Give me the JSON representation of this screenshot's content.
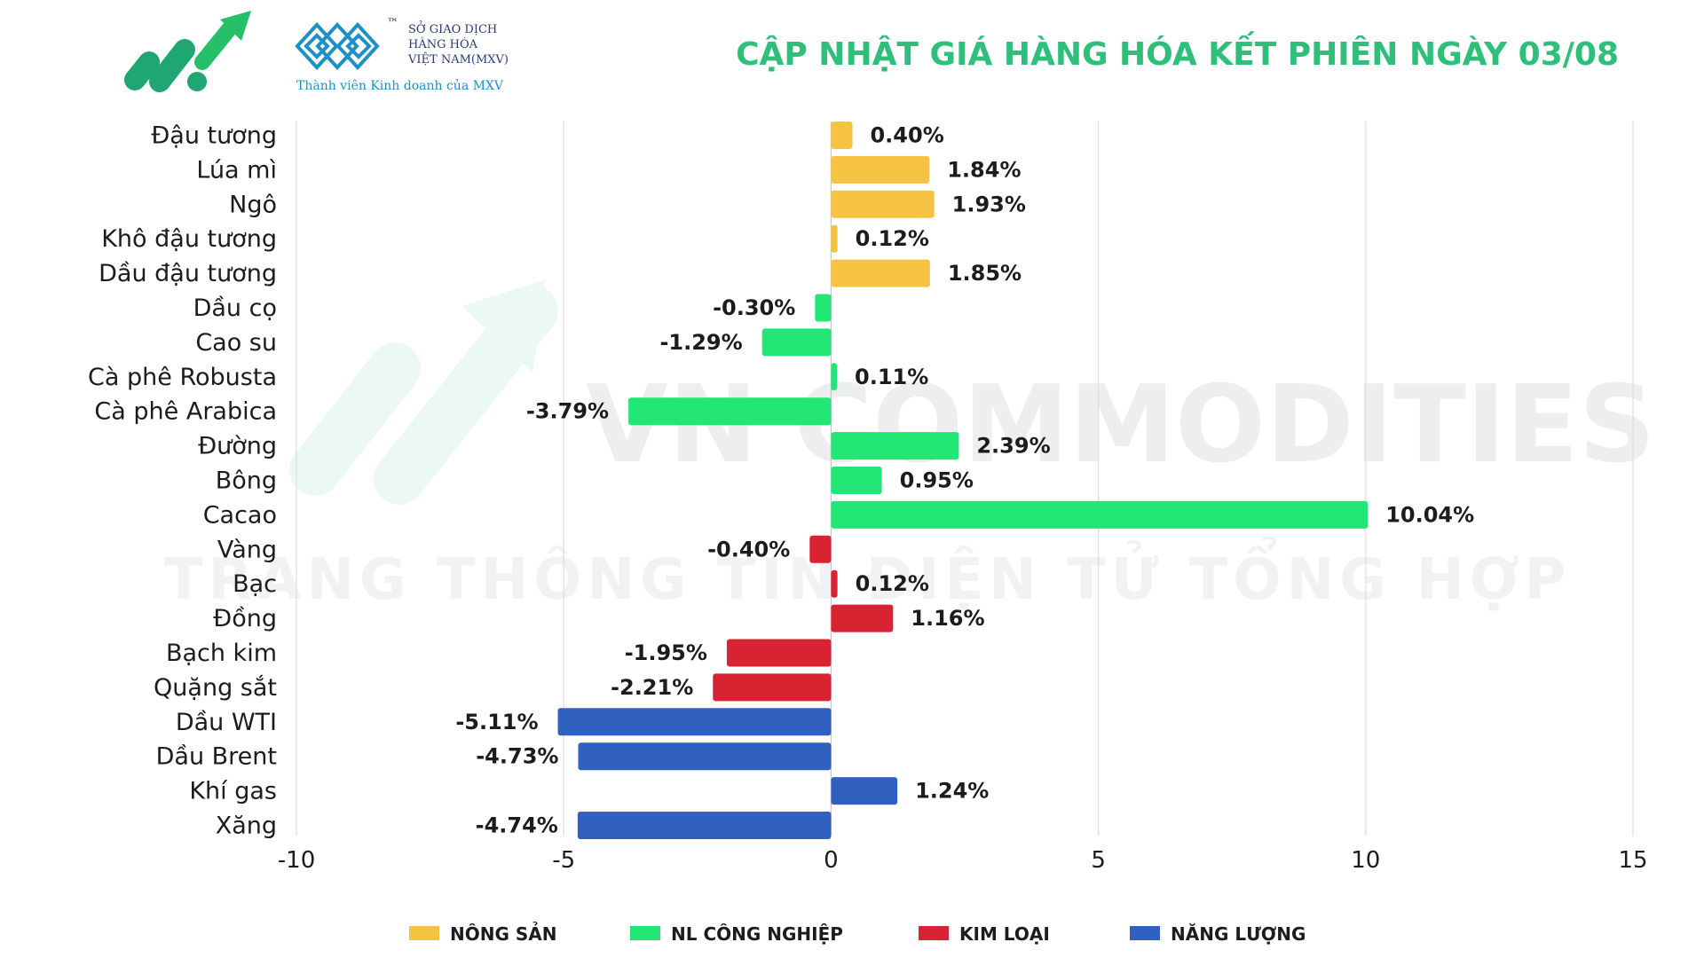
{
  "header": {
    "title": "CẬP NHẬT GIÁ HÀNG HÓA KẾT PHIÊN NGÀY 03/08",
    "mxv_lines": [
      "SỞ GIAO DỊCH",
      "HÀNG HÓA",
      "VIỆT NAM(MXV)"
    ],
    "mxv_tagline": "Thành viên Kinh doanh của MXV",
    "trademark": "™"
  },
  "watermark": {
    "line1": "VN COMMODITIES",
    "line2": "TRANG THÔNG TIN ĐIỆN TỬ TỔNG HỢP"
  },
  "colors": {
    "nong_san": "#f5c242",
    "nl_cong_nghiep": "#22e676",
    "kim_loai": "#d92232",
    "nang_luong": "#3060c0",
    "title": "#2ec07a",
    "grid": "#dddddd"
  },
  "chart_data": {
    "type": "bar",
    "orientation": "horizontal",
    "title": "CẬP NHẬT GIÁ HÀNG HÓA KẾT PHIÊN NGÀY 03/08",
    "xlim": [
      -10,
      15
    ],
    "xticks": [
      -10,
      -5,
      0,
      5,
      10,
      15
    ],
    "grid": "vertical",
    "legend_position": "bottom",
    "categories": [
      "Đậu tương",
      "Lúa mì",
      "Ngô",
      "Khô đậu tương",
      "Dầu đậu tương",
      "Dầu cọ",
      "Cao su",
      "Cà phê Robusta",
      "Cà phê Arabica",
      "Đường",
      "Bông",
      "Cacao",
      "Vàng",
      "Bạc",
      "Đồng",
      "Bạch kim",
      "Quặng sắt",
      "Dầu WTI",
      "Dầu Brent",
      "Khí gas",
      "Xăng"
    ],
    "values": [
      0.4,
      1.84,
      1.93,
      0.12,
      1.85,
      -0.3,
      -1.29,
      0.11,
      -3.79,
      2.39,
      0.95,
      10.04,
      -0.4,
      0.12,
      1.16,
      -1.95,
      -2.21,
      -5.11,
      -4.73,
      1.24,
      -4.74
    ],
    "value_labels": [
      "0.40%",
      "1.84%",
      "1.93%",
      "0.12%",
      "1.85%",
      "-0.30%",
      "-1.29%",
      "0.11%",
      "-3.79%",
      "2.39%",
      "0.95%",
      "10.04%",
      "-0.40%",
      "0.12%",
      "1.16%",
      "-1.95%",
      "-2.21%",
      "-5.11%",
      "-4.73%",
      "1.24%",
      "-4.74%"
    ],
    "groups": [
      "nong_san",
      "nong_san",
      "nong_san",
      "nong_san",
      "nong_san",
      "nl_cong_nghiep",
      "nl_cong_nghiep",
      "nl_cong_nghiep",
      "nl_cong_nghiep",
      "nl_cong_nghiep",
      "nl_cong_nghiep",
      "nl_cong_nghiep",
      "kim_loai",
      "kim_loai",
      "kim_loai",
      "kim_loai",
      "kim_loai",
      "nang_luong",
      "nang_luong",
      "nang_luong",
      "nang_luong"
    ],
    "legend": [
      {
        "key": "nong_san",
        "label": "NÔNG SẢN"
      },
      {
        "key": "nl_cong_nghiep",
        "label": "NL CÔNG NGHIỆP"
      },
      {
        "key": "kim_loai",
        "label": "KIM LOẠI"
      },
      {
        "key": "nang_luong",
        "label": "NĂNG LƯỢNG"
      }
    ]
  }
}
